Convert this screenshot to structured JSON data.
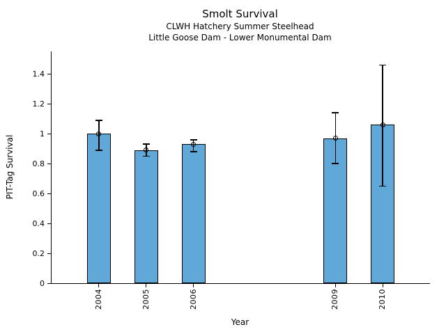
{
  "chart_data": {
    "type": "bar",
    "title": "Smolt Survival",
    "subtitles": [
      "CLWH Hatchery Summer Steelhead",
      "Little Goose Dam - Lower Monumental Dam"
    ],
    "xlabel": "Year",
    "ylabel": "PIT-Tag Survival",
    "categories": [
      2004,
      2005,
      2006,
      2009,
      2010
    ],
    "values": [
      1.0,
      0.89,
      0.93,
      0.97,
      1.06
    ],
    "error_low": [
      0.89,
      0.85,
      0.88,
      0.8,
      0.65
    ],
    "error_high": [
      1.09,
      0.93,
      0.96,
      1.14,
      1.46
    ],
    "xlim": [
      2003,
      2011
    ],
    "ylim": [
      0,
      1.55
    ],
    "yticks": [
      0,
      0.2,
      0.4,
      0.6,
      0.8,
      1.0,
      1.2,
      1.4
    ],
    "ytick_labels": [
      "0",
      "0.2",
      "0.4",
      "0.6",
      "0.8",
      "1",
      "1.2",
      "1.4"
    ],
    "bar_width_years": 0.5,
    "bar_color": "#5fa8d8",
    "bar_edge_color": "#000000",
    "error_color": "#000000",
    "marker": "open-circle",
    "grid": false,
    "legend": null
  }
}
